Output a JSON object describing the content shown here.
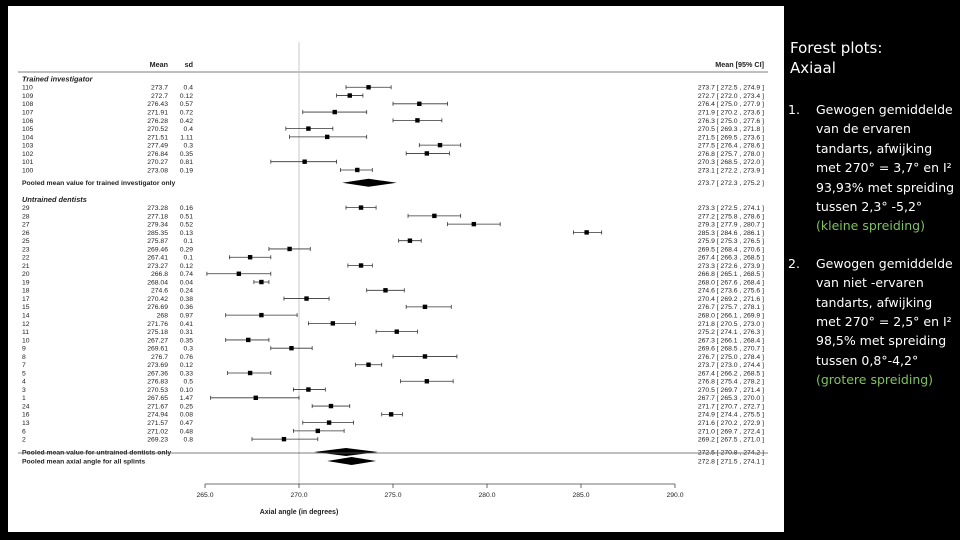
{
  "slide": {
    "title": "Forest plots:\nAxiaal",
    "points": [
      {
        "num": "1.",
        "text": "Gewogen gemiddelde van de ervaren tandarts, afwijking met 270° = 3,7° en I² 93,93% met spreiding tussen 2,3° -5,2°",
        "note": "(kleine spreiding)"
      },
      {
        "num": "2.",
        "text": "Gewogen gemiddelde van niet -ervaren tandarts, afwijking met 270° = 2,5° en I² 98,5% met spreiding tussen 0,8°-4,2°",
        "note": "(grotere spreiding)"
      }
    ]
  },
  "chart_data": {
    "type": "forest",
    "columns": {
      "mean": "Mean",
      "sd": "sd",
      "ci": "Mean [95% CI]"
    },
    "xlabel": "Axial angle (in degrees)",
    "x_ticks": [
      "265.0",
      "270.0",
      "275.0",
      "280.0",
      "285.0",
      "290.0"
    ],
    "xlim": [
      265,
      290
    ],
    "reference_line": 270,
    "groups": [
      {
        "title": "Trained investigator",
        "rows": [
          {
            "id": "110",
            "mean": "273.7",
            "sd": "0.4",
            "est": 273.7,
            "lo": 272.5,
            "hi": 274.9,
            "ci": "273.7 [ 272.5 , 274.9 ]"
          },
          {
            "id": "109",
            "mean": "272.7",
            "sd": "0.12",
            "est": 272.7,
            "lo": 272.0,
            "hi": 273.4,
            "ci": "272.7 [ 272.0 , 273.4 ]"
          },
          {
            "id": "108",
            "mean": "276.43",
            "sd": "0.57",
            "est": 276.4,
            "lo": 275.0,
            "hi": 277.9,
            "ci": "276.4 [ 275.0 , 277.9 ]"
          },
          {
            "id": "107",
            "mean": "271.91",
            "sd": "0.72",
            "est": 271.9,
            "lo": 270.2,
            "hi": 273.6,
            "ci": "271.9 [ 270.2 , 273.6 ]"
          },
          {
            "id": "106",
            "mean": "276.28",
            "sd": "0.42",
            "est": 276.3,
            "lo": 275.0,
            "hi": 277.6,
            "ci": "276.3 [ 275.0 , 277.6 ]"
          },
          {
            "id": "105",
            "mean": "270.52",
            "sd": "0.4",
            "est": 270.5,
            "lo": 269.3,
            "hi": 271.8,
            "ci": "270.5 [ 269.3 , 271.8 ]"
          },
          {
            "id": "104",
            "mean": "271.51",
            "sd": "1.11",
            "est": 271.5,
            "lo": 269.5,
            "hi": 273.6,
            "ci": "271.5 [ 269.5 , 273.6 ]"
          },
          {
            "id": "103",
            "mean": "277.49",
            "sd": "0.3",
            "est": 277.5,
            "lo": 276.4,
            "hi": 278.6,
            "ci": "277.5 [ 276.4 , 278.6 ]"
          },
          {
            "id": "102",
            "mean": "276.84",
            "sd": "0.35",
            "est": 276.8,
            "lo": 275.7,
            "hi": 278.0,
            "ci": "276.8 [ 275.7 , 278.0 ]"
          },
          {
            "id": "101",
            "mean": "270.27",
            "sd": "0.81",
            "est": 270.3,
            "lo": 268.5,
            "hi": 272.0,
            "ci": "270.3 [ 268.5 , 272.0 ]"
          },
          {
            "id": "100",
            "mean": "273.08",
            "sd": "0.19",
            "est": 273.1,
            "lo": 272.2,
            "hi": 273.9,
            "ci": "273.1 [ 272.2 , 273.9 ]"
          }
        ],
        "pooled": {
          "label": "Pooled mean value for trained investigator only",
          "est": 273.7,
          "lo": 272.3,
          "hi": 275.2,
          "ci": "273.7 [ 272.3 , 275.2 ]"
        }
      },
      {
        "title": "Untrained dentists",
        "rows": [
          {
            "id": "29",
            "mean": "273.28",
            "sd": "0.16",
            "est": 273.3,
            "lo": 272.5,
            "hi": 274.1,
            "ci": "273.3 [ 272.5 , 274.1 ]"
          },
          {
            "id": "28",
            "mean": "277.18",
            "sd": "0.51",
            "est": 277.2,
            "lo": 275.8,
            "hi": 278.6,
            "ci": "277.2 [ 275.8 , 278.6 ]"
          },
          {
            "id": "27",
            "mean": "279.34",
            "sd": "0.52",
            "est": 279.3,
            "lo": 277.9,
            "hi": 280.7,
            "ci": "279.3 [ 277.9 , 280.7 ]"
          },
          {
            "id": "26",
            "mean": "285.35",
            "sd": "0.13",
            "est": 285.3,
            "lo": 284.6,
            "hi": 286.1,
            "ci": "285.3 [ 284.6 , 286.1 ]"
          },
          {
            "id": "25",
            "mean": "275.87",
            "sd": "0.1",
            "est": 275.9,
            "lo": 275.3,
            "hi": 276.5,
            "ci": "275.9 [ 275.3 , 276.5 ]"
          },
          {
            "id": "23",
            "mean": "269.46",
            "sd": "0.29",
            "est": 269.5,
            "lo": 268.4,
            "hi": 270.6,
            "ci": "269.5 [ 268.4 , 270.6 ]"
          },
          {
            "id": "22",
            "mean": "267.41",
            "sd": "0.1",
            "est": 267.4,
            "lo": 266.3,
            "hi": 268.5,
            "ci": "267.4 [ 266.3 , 268.5 ]"
          },
          {
            "id": "21",
            "mean": "273.27",
            "sd": "0.12",
            "est": 273.3,
            "lo": 272.6,
            "hi": 273.9,
            "ci": "273.3 [ 272.6 , 273.9 ]"
          },
          {
            "id": "20",
            "mean": "266.8",
            "sd": "0.74",
            "est": 266.8,
            "lo": 265.1,
            "hi": 268.5,
            "ci": "266.8 [ 265.1 , 268.5 ]"
          },
          {
            "id": "19",
            "mean": "268.04",
            "sd": "0.04",
            "est": 268.0,
            "lo": 267.6,
            "hi": 268.4,
            "ci": "268.0 [ 267.6 , 268.4 ]"
          },
          {
            "id": "18",
            "mean": "274.6",
            "sd": "0.24",
            "est": 274.6,
            "lo": 273.6,
            "hi": 275.6,
            "ci": "274.6 [ 273.6 , 275.6 ]"
          },
          {
            "id": "17",
            "mean": "270.42",
            "sd": "0.38",
            "est": 270.4,
            "lo": 269.2,
            "hi": 271.6,
            "ci": "270.4 [ 269.2 , 271.6 ]"
          },
          {
            "id": "15",
            "mean": "276.69",
            "sd": "0.36",
            "est": 276.7,
            "lo": 275.7,
            "hi": 278.1,
            "ci": "276.7 [ 275.7 , 278.1 ]"
          },
          {
            "id": "14",
            "mean": "268",
            "sd": "0.97",
            "est": 268.0,
            "lo": 266.1,
            "hi": 269.9,
            "ci": "268.0 [ 266.1 , 269.9 ]"
          },
          {
            "id": "12",
            "mean": "271.76",
            "sd": "0.41",
            "est": 271.8,
            "lo": 270.5,
            "hi": 273.0,
            "ci": "271.8 [ 270.5 , 273.0 ]"
          },
          {
            "id": "11",
            "mean": "275.18",
            "sd": "0.31",
            "est": 275.2,
            "lo": 274.1,
            "hi": 276.3,
            "ci": "275.2 [ 274.1 , 276.3 ]"
          },
          {
            "id": "10",
            "mean": "267.27",
            "sd": "0.35",
            "est": 267.3,
            "lo": 266.1,
            "hi": 268.4,
            "ci": "267.3 [ 266.1 , 268.4 ]"
          },
          {
            "id": "9",
            "mean": "269.61",
            "sd": "0.3",
            "est": 269.6,
            "lo": 268.5,
            "hi": 270.7,
            "ci": "269.6 [ 268.5 , 270.7 ]"
          },
          {
            "id": "8",
            "mean": "276.7",
            "sd": "0.76",
            "est": 276.7,
            "lo": 275.0,
            "hi": 278.4,
            "ci": "276.7 [ 275.0 , 278.4 ]"
          },
          {
            "id": "7",
            "mean": "273.69",
            "sd": "0.12",
            "est": 273.7,
            "lo": 273.0,
            "hi": 274.4,
            "ci": "273.7 [ 273.0 , 274.4 ]"
          },
          {
            "id": "5",
            "mean": "267.36",
            "sd": "0.33",
            "est": 267.4,
            "lo": 266.2,
            "hi": 268.5,
            "ci": "267.4 [ 266.2 , 268.5 ]"
          },
          {
            "id": "4",
            "mean": "276.83",
            "sd": "0.5",
            "est": 276.8,
            "lo": 275.4,
            "hi": 278.2,
            "ci": "276.8 [ 275.4 , 278.2 ]"
          },
          {
            "id": "3",
            "mean": "270.53",
            "sd": "0.10",
            "est": 270.5,
            "lo": 269.7,
            "hi": 271.4,
            "ci": "270.5 [ 269.7 , 271.4 ]"
          },
          {
            "id": "1",
            "mean": "267.65",
            "sd": "1.47",
            "est": 267.7,
            "lo": 265.3,
            "hi": 270.0,
            "ci": "267.7 [ 265.3 , 270.0 ]"
          },
          {
            "id": "24",
            "mean": "271.67",
            "sd": "0.25",
            "est": 271.7,
            "lo": 270.7,
            "hi": 272.7,
            "ci": "271.7 [ 270.7 , 272.7 ]"
          },
          {
            "id": "16",
            "mean": "274.94",
            "sd": "0.08",
            "est": 274.9,
            "lo": 274.4,
            "hi": 275.5,
            "ci": "274.9 [ 274.4 , 275.5 ]"
          },
          {
            "id": "13",
            "mean": "271.57",
            "sd": "0.47",
            "est": 271.6,
            "lo": 270.2,
            "hi": 272.9,
            "ci": "271.6 [ 270.2 , 272.9 ]"
          },
          {
            "id": "6",
            "mean": "271.02",
            "sd": "0.48",
            "est": 271.0,
            "lo": 269.7,
            "hi": 272.4,
            "ci": "271.0 [ 269.7 , 272.4 ]"
          },
          {
            "id": "2",
            "mean": "269.23",
            "sd": "0.8",
            "est": 269.2,
            "lo": 267.5,
            "hi": 271.0,
            "ci": "269.2 [ 267.5 , 271.0 ]"
          }
        ],
        "pooled": {
          "label": "Pooled mean value for untrained dentists only",
          "est": 272.5,
          "lo": 270.8,
          "hi": 274.2,
          "ci": "272.5 [ 270.8 , 274.2 ]"
        }
      }
    ],
    "overall": {
      "label": "Pooled mean axial angle for all splints",
      "est": 272.8,
      "lo": 271.5,
      "hi": 274.1,
      "ci": "272.8 [ 271.5 , 274.1 ]"
    }
  }
}
